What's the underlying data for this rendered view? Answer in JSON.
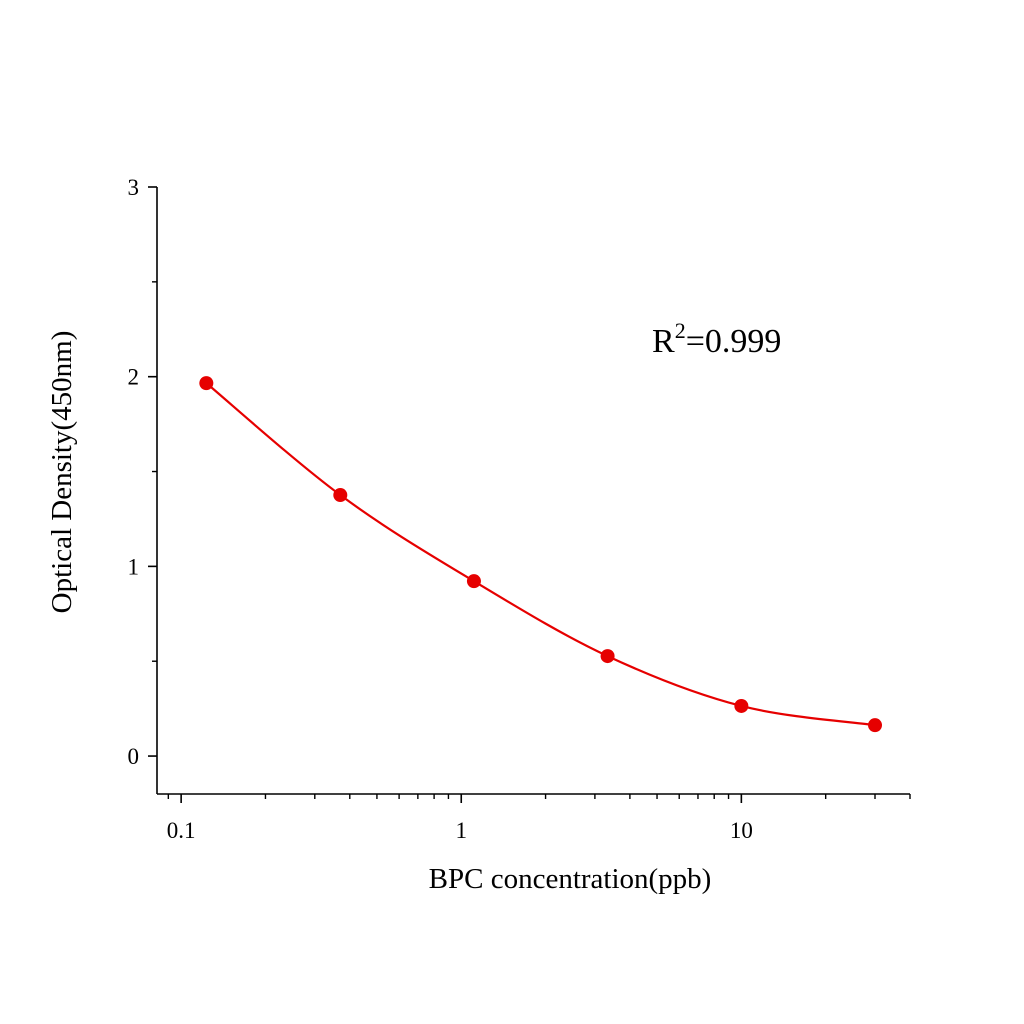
{
  "chart_data": {
    "type": "scatter",
    "title": "",
    "xlabel": "BPC concentration(ppb)",
    "ylabel": "Optical Density(450nm)",
    "x_scale": "log",
    "xlim": [
      0.082,
      40
    ],
    "ylim": [
      -0.2,
      3
    ],
    "x_ticks": [
      "0.1",
      "1",
      "10"
    ],
    "y_ticks": [
      "0",
      "1",
      "2",
      "3"
    ],
    "grid": false,
    "annotation": {
      "base": "R",
      "sup": "2",
      "rest": "=0.999"
    },
    "color": "#e60000",
    "series": [
      {
        "x": [
          0.123,
          0.37,
          1.11,
          3.33,
          10,
          30
        ],
        "y": [
          1.966,
          1.376,
          0.922,
          0.527,
          0.264,
          0.163
        ],
        "fit": "4PL curve"
      }
    ]
  }
}
